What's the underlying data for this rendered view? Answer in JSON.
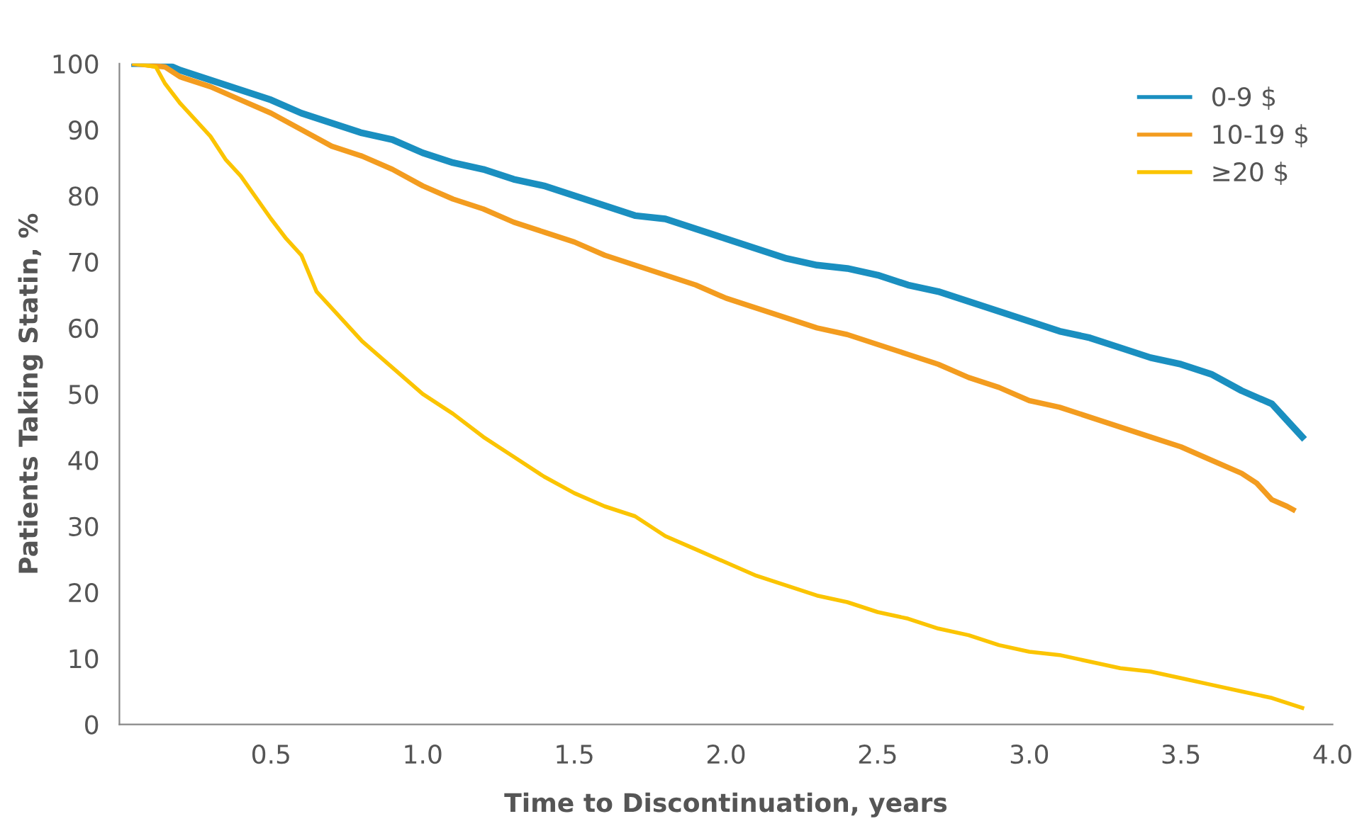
{
  "chart_data": {
    "type": "line",
    "xlabel": "Time to Discontinuation, years",
    "ylabel": "Patients Taking Statin, %",
    "xlim": [
      0,
      4.0
    ],
    "ylim": [
      0,
      100
    ],
    "xticks": [
      0.5,
      {
        "value": 1,
        "label": "1.0"
      },
      1.5,
      {
        "value": 2,
        "label": "2.0"
      },
      2.5,
      {
        "value": 3,
        "label": "3.0"
      },
      3.5,
      {
        "value": 4,
        "label": "4.0"
      }
    ],
    "yticks": [
      0,
      10,
      20,
      30,
      40,
      50,
      60,
      70,
      80,
      90,
      100
    ],
    "grid": false,
    "legend": "top right",
    "marker": "none",
    "line_style": "solid",
    "series": [
      {
        "name": "0-9 $",
        "color": "#1a8fc0",
        "x": [
          0.05,
          0.15,
          0.2,
          0.3,
          0.4,
          0.5,
          0.6,
          0.7,
          0.8,
          0.9,
          1.0,
          1.1,
          1.2,
          1.3,
          1.4,
          1.5,
          1.6,
          1.7,
          1.8,
          1.9,
          2.0,
          2.1,
          2.2,
          2.3,
          2.4,
          2.5,
          2.6,
          2.7,
          2.8,
          2.9,
          3.0,
          3.1,
          3.2,
          3.3,
          3.4,
          3.5,
          3.6,
          3.7,
          3.8,
          3.85,
          3.9
        ],
        "values": [
          100,
          100,
          99,
          97.5,
          96,
          94.5,
          92.5,
          91,
          89.5,
          88.5,
          86.5,
          85,
          84,
          82.5,
          81.5,
          80,
          78.5,
          77,
          76.5,
          75,
          73.5,
          72,
          70.5,
          69.5,
          69,
          68,
          66.5,
          65.5,
          64,
          62.5,
          61,
          59.5,
          58.5,
          57,
          55.5,
          54.5,
          53,
          50.5,
          48.5,
          46,
          43.5
        ]
      },
      {
        "name": "10-19 $",
        "color": "#f39c1f",
        "x": [
          0.05,
          0.15,
          0.2,
          0.3,
          0.4,
          0.5,
          0.6,
          0.7,
          0.8,
          0.9,
          1.0,
          1.1,
          1.2,
          1.3,
          1.4,
          1.5,
          1.6,
          1.7,
          1.8,
          1.9,
          2.0,
          2.1,
          2.2,
          2.3,
          2.4,
          2.5,
          2.6,
          2.7,
          2.8,
          2.9,
          3.0,
          3.1,
          3.2,
          3.3,
          3.4,
          3.5,
          3.6,
          3.7,
          3.75,
          3.8,
          3.85,
          3.87
        ],
        "values": [
          100,
          99.5,
          98,
          96.5,
          94.5,
          92.5,
          90,
          87.5,
          86,
          84,
          81.5,
          79.5,
          78,
          76,
          74.5,
          73,
          71,
          69.5,
          68,
          66.5,
          64.5,
          63,
          61.5,
          60,
          59,
          57.5,
          56,
          54.5,
          52.5,
          51,
          49,
          48,
          46.5,
          45,
          43.5,
          42,
          40,
          38,
          36.5,
          34,
          33,
          32.5
        ]
      },
      {
        "name": "≥20 $",
        "color": "#fbc400",
        "x": [
          0.05,
          0.12,
          0.15,
          0.2,
          0.3,
          0.35,
          0.4,
          0.5,
          0.55,
          0.6,
          0.65,
          0.7,
          0.8,
          0.9,
          1.0,
          1.1,
          1.2,
          1.3,
          1.4,
          1.5,
          1.6,
          1.7,
          1.8,
          1.9,
          2.0,
          2.1,
          2.2,
          2.3,
          2.4,
          2.5,
          2.6,
          2.7,
          2.8,
          2.9,
          3.0,
          3.1,
          3.2,
          3.3,
          3.4,
          3.5,
          3.6,
          3.7,
          3.8,
          3.9
        ],
        "values": [
          100,
          99.5,
          97,
          94,
          89,
          85.5,
          83,
          76.5,
          73.5,
          71,
          65.5,
          63,
          58,
          54,
          50,
          47,
          43.5,
          40.5,
          37.5,
          35,
          33,
          31.5,
          28.5,
          26.5,
          24.5,
          22.5,
          21,
          19.5,
          18.5,
          17,
          16,
          14.5,
          13.5,
          12,
          11,
          10.5,
          9.5,
          8.5,
          8,
          7,
          6,
          5,
          4,
          2.5
        ]
      }
    ]
  }
}
